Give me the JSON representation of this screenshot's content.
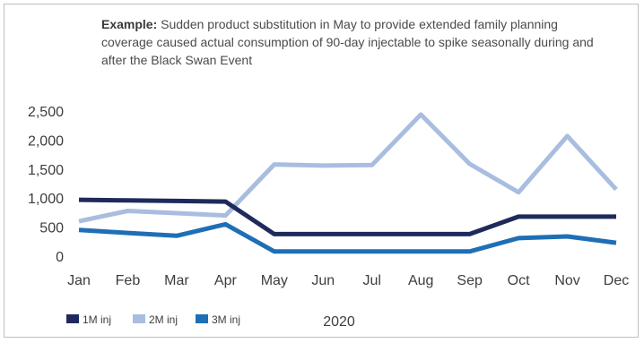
{
  "note": {
    "lead": "Example:",
    "text": " Sudden product substitution in May to provide extended family planning coverage caused actual consumption of 90-day injectable to spike seasonally during and after the Black Swan Event"
  },
  "chart_data": {
    "type": "line",
    "categories": [
      "Jan",
      "Feb",
      "Mar",
      "Apr",
      "May",
      "Jun",
      "Jul",
      "Aug",
      "Sep",
      "Oct",
      "Nov",
      "Dec"
    ],
    "y_ticks": [
      "0",
      "500",
      "1,000",
      "1,500",
      "2,000",
      "2,500"
    ],
    "ylim": [
      0,
      2500
    ],
    "xlabel": "2020",
    "legend_position": "bottom-left",
    "series": [
      {
        "name": "1M inj",
        "color": "#1f2a5c",
        "values": [
          970,
          960,
          950,
          940,
          380,
          380,
          380,
          380,
          380,
          680,
          680,
          680
        ]
      },
      {
        "name": "2M inj",
        "color": "#a9bde0",
        "values": [
          600,
          780,
          740,
          700,
          1580,
          1560,
          1570,
          2440,
          1590,
          1100,
          2070,
          1150
        ]
      },
      {
        "name": "3M inj",
        "color": "#1e6fb5",
        "values": [
          450,
          400,
          350,
          550,
          80,
          80,
          80,
          80,
          80,
          310,
          340,
          230
        ]
      }
    ]
  }
}
